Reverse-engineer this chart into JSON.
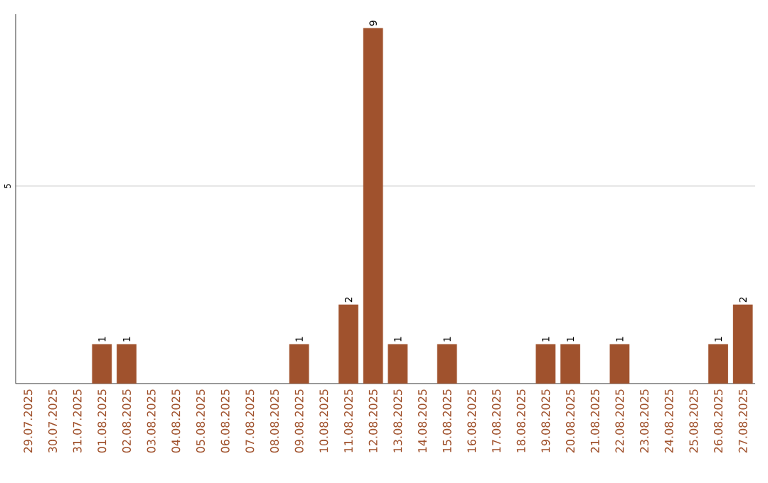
{
  "chart_data": {
    "type": "bar",
    "categories": [
      "29.07.2025",
      "30.07.2025",
      "31.07.2025",
      "01.08.2025",
      "02.08.2025",
      "03.08.2025",
      "04.08.2025",
      "05.08.2025",
      "06.08.2025",
      "07.08.2025",
      "08.08.2025",
      "09.08.2025",
      "10.08.2025",
      "11.08.2025",
      "12.08.2025",
      "13.08.2025",
      "14.08.2025",
      "15.08.2025",
      "16.08.2025",
      "17.08.2025",
      "18.08.2025",
      "19.08.2025",
      "20.08.2025",
      "21.08.2025",
      "22.08.2025",
      "23.08.2025",
      "24.08.2025",
      "25.08.2025",
      "26.08.2025",
      "27.08.2025"
    ],
    "values": [
      0,
      0,
      0,
      1,
      1,
      0,
      0,
      0,
      0,
      0,
      0,
      1,
      0,
      2,
      9,
      1,
      0,
      1,
      0,
      0,
      0,
      1,
      1,
      0,
      1,
      0,
      0,
      0,
      1,
      2
    ],
    "value_labels": [
      null,
      null,
      null,
      "1",
      "1",
      null,
      null,
      null,
      null,
      null,
      null,
      "1",
      null,
      "2",
      "9",
      "1",
      null,
      "1",
      null,
      null,
      null,
      "1",
      "1",
      null,
      "1",
      null,
      null,
      null,
      "1",
      "2"
    ],
    "color": "#a0522d",
    "ylim": [
      0,
      9.35
    ],
    "yticks": [
      5
    ],
    "grid": "y"
  }
}
